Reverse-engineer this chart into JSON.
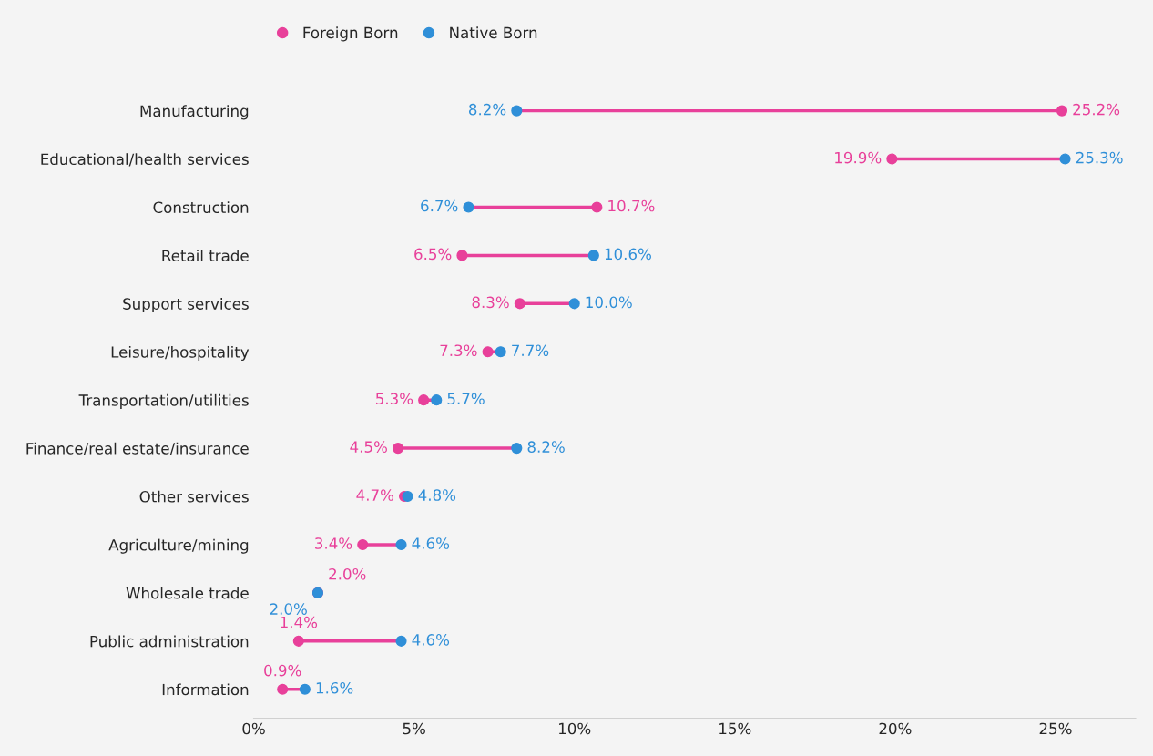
{
  "chart_data": {
    "type": "scatter",
    "orientation": "horizontal",
    "marker": "circle",
    "legend": "top left",
    "grid": false,
    "categories": [
      "Manufacturing",
      "Educational/health services",
      "Construction",
      "Retail trade",
      "Support services",
      "Leisure/hospitality",
      "Transportation/utilities",
      "Finance/real estate/insurance",
      "Other services",
      "Agriculture/mining",
      "Wholesale trade",
      "Public administration",
      "Information"
    ],
    "xlim": [
      0,
      27.5
    ],
    "xticks": [
      {
        "value": 0,
        "label": "0%"
      },
      {
        "value": 5,
        "label": "5%"
      },
      {
        "value": 10,
        "label": "10%"
      },
      {
        "value": 15,
        "label": "15%"
      },
      {
        "value": 20,
        "label": "20%"
      },
      {
        "value": 25,
        "label": "25%"
      }
    ],
    "series": [
      {
        "name": "Foreign Born",
        "color": "#e8409a",
        "values": [
          25.2,
          19.9,
          10.7,
          6.5,
          8.3,
          7.3,
          5.3,
          4.5,
          4.7,
          3.4,
          2.0,
          1.4,
          0.9
        ],
        "value_labels": [
          "25.2%",
          "19.9%",
          "10.7%",
          "6.5%",
          "8.3%",
          "7.3%",
          "5.3%",
          "4.5%",
          "4.7%",
          "3.4%",
          "2.0%",
          "1.4%",
          "0.9%"
        ]
      },
      {
        "name": "Native Born",
        "color": "#2f8fd8",
        "values": [
          8.2,
          25.3,
          6.7,
          10.6,
          10.0,
          7.7,
          5.7,
          8.2,
          4.8,
          4.6,
          2.0,
          4.6,
          1.6
        ],
        "value_labels": [
          "8.2%",
          "25.3%",
          "6.7%",
          "10.6%",
          "10.0%",
          "7.7%",
          "5.7%",
          "8.2%",
          "4.8%",
          "4.6%",
          "2.0%",
          "4.6%",
          "1.6%"
        ]
      }
    ]
  }
}
